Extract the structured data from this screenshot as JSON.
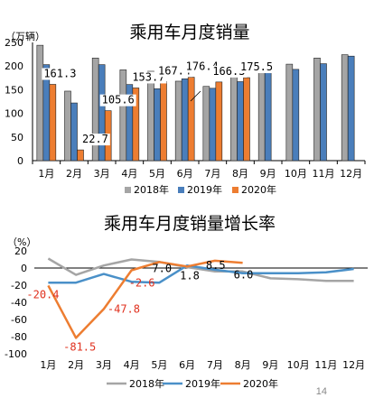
{
  "page_number": "14",
  "chart_data": [
    {
      "type": "bar",
      "title": "乘用车月度销量",
      "unit_label": "（万辆）",
      "categories": [
        "1月",
        "2月",
        "3月",
        "4月",
        "5月",
        "6月",
        "7月",
        "8月",
        "9月",
        "10月",
        "11月",
        "12月"
      ],
      "ylim": [
        0,
        250
      ],
      "yticks": [
        0,
        50,
        100,
        150,
        200,
        250
      ],
      "legend_position": "bottom",
      "series": [
        {
          "name": "2018年",
          "color": "#a5a5a5",
          "values": [
            244,
            147,
            217,
            192,
            189,
            168,
            157,
            178,
            205,
            204,
            217,
            224
          ]
        },
        {
          "name": "2019年",
          "color": "#4a7ebb",
          "values": [
            203,
            122,
            203,
            161,
            152,
            173,
            153,
            167,
            193,
            193,
            205,
            221
          ]
        },
        {
          "name": "2020年",
          "color": "#ed7d31",
          "values": [
            161.3,
            22.7,
            105.6,
            153.7,
            167.4,
            176.4,
            166.3,
            175.5,
            null,
            null,
            null,
            null
          ]
        }
      ],
      "data_labels": [
        "161.3",
        "22.7",
        "105.6",
        "153.7",
        "167.4",
        "176.4",
        "166.3",
        "175.5"
      ]
    },
    {
      "type": "line",
      "title": "乘用车月度销量增长率",
      "unit_label": "（%）",
      "categories": [
        "1月",
        "2月",
        "3月",
        "4月",
        "5月",
        "6月",
        "7月",
        "8月",
        "9月",
        "10月",
        "11月",
        "12月"
      ],
      "ylim": [
        -100,
        20
      ],
      "yticks": [
        -100,
        -80,
        -60,
        -40,
        -20,
        0,
        20
      ],
      "legend_position": "bottom",
      "series": [
        {
          "name": "2018年",
          "color": "#a5a5a5",
          "values": [
            11,
            -8,
            3,
            10,
            7,
            1,
            -4,
            -4,
            -12,
            -13,
            -15,
            -15
          ]
        },
        {
          "name": "2019年",
          "color": "#4a90c8",
          "values": [
            -17,
            -17,
            -7,
            -16,
            -17,
            3,
            -2,
            -6,
            -6,
            -6,
            -5,
            -1
          ]
        },
        {
          "name": "2020年",
          "color": "#ed7d31",
          "values": [
            -20.4,
            -81.5,
            -47.8,
            -2.6,
            7.0,
            1.8,
            8.5,
            6.0,
            null,
            null,
            null,
            null
          ]
        }
      ],
      "data_labels": [
        {
          "text": "-20.4",
          "color": "#e0301e"
        },
        {
          "text": "-81.5",
          "color": "#e0301e"
        },
        {
          "text": "-47.8",
          "color": "#e0301e"
        },
        {
          "text": "-2.6",
          "color": "#e0301e"
        },
        {
          "text": "7.0",
          "color": "#000000"
        },
        {
          "text": "1.8",
          "color": "#000000"
        },
        {
          "text": "8.5",
          "color": "#000000"
        },
        {
          "text": "6.0",
          "color": "#000000"
        }
      ]
    }
  ]
}
